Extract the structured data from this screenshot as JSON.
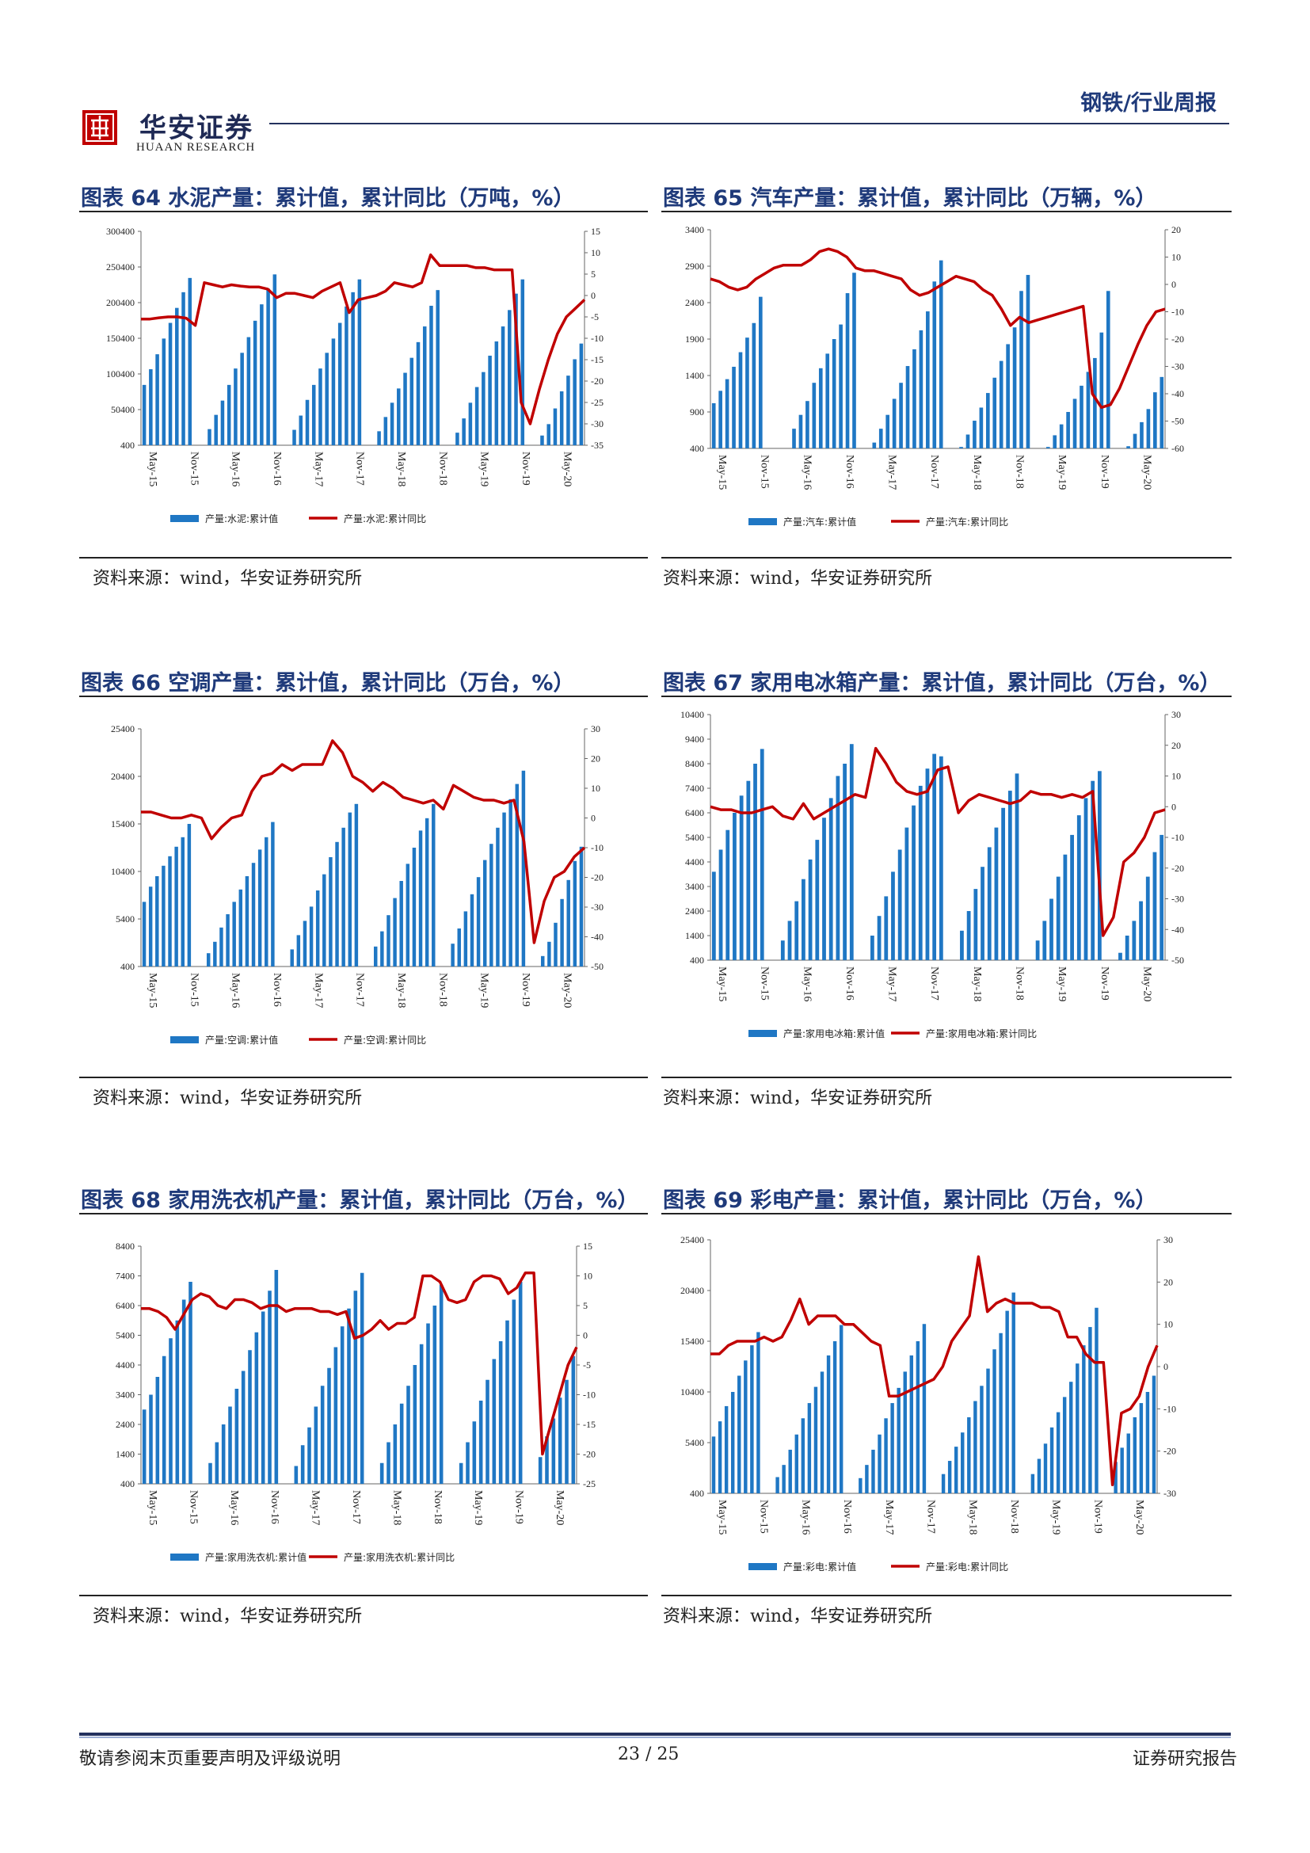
{
  "header": {
    "logo_cn": "华安证券",
    "logo_en": "HUAAN RESEARCH",
    "report_type": "钢铁/行业周报"
  },
  "footer": {
    "disclaimer": "敬请参阅末页重要声明及评级说明",
    "page": "23 / 25",
    "label": "证券研究报告"
  },
  "colors": {
    "bar": "#1f77c4",
    "line": "#c00000",
    "title": "#1f3a7a"
  },
  "panels": [
    {
      "title": "图表 64 水泥产量：累计值，累计同比（万吨，%）",
      "source": "资料来源：wind，华安证券研究所"
    },
    {
      "title": "图表 65 汽车产量：累计值，累计同比（万辆，%）",
      "source": "资料来源：wind，华安证券研究所"
    },
    {
      "title": "图表 66 空调产量：累计值，累计同比（万台，%）",
      "source": "资料来源：wind，华安证券研究所"
    },
    {
      "title": "图表 67 家用电冰箱产量：累计值，累计同比（万台，%）",
      "source": "资料来源：wind，华安证券研究所"
    },
    {
      "title": "图表 68 家用洗衣机产量：累计值，累计同比（万台，%）",
      "source": "资料来源：wind，华安证券研究所"
    },
    {
      "title": "图表 69 彩电产量：累计值，累计同比（万台，%）",
      "source": "资料来源：wind，华安证券研究所"
    }
  ],
  "chart_data": [
    {
      "type": "bar+line",
      "x_tick_labels": [
        "May-15",
        "Nov-15",
        "May-16",
        "Nov-16",
        "May-17",
        "Nov-17",
        "May-18",
        "Nov-18",
        "May-19",
        "Nov-19",
        "May-20"
      ],
      "left_axis": {
        "ylim": [
          400,
          300400
        ],
        "ticks": [
          400,
          50400,
          100400,
          150400,
          200400,
          250400,
          300400
        ]
      },
      "right_axis": {
        "ylim": [
          -35,
          15
        ],
        "ticks": [
          -35,
          -30,
          -25,
          -20,
          -15,
          -10,
          -5,
          0,
          5,
          10,
          15
        ]
      },
      "series": [
        {
          "name": "产量:水泥:累计值",
          "kind": "bar",
          "values": [
            85000,
            107000,
            128000,
            150000,
            172000,
            193000,
            215000,
            235000,
            null,
            null,
            23000,
            43000,
            63000,
            85000,
            108000,
            130000,
            152000,
            175000,
            198000,
            220000,
            240000,
            null,
            null,
            22000,
            42000,
            64000,
            85000,
            108000,
            130000,
            150000,
            172000,
            195000,
            215000,
            233000,
            null,
            null,
            20000,
            40000,
            60000,
            80000,
            102000,
            123000,
            145000,
            167000,
            196000,
            218000,
            null,
            null,
            18000,
            38000,
            60000,
            82000,
            103000,
            126000,
            146000,
            167000,
            190000,
            213000,
            233000,
            null,
            null,
            14000,
            30000,
            52000,
            76000,
            98000,
            121000,
            143000
          ]
        },
        {
          "name": "产量:水泥:累计同比",
          "kind": "line",
          "values": [
            -5.5,
            -5.5,
            -5.2,
            -5.0,
            -5.0,
            -5.3,
            -7.0,
            3.0,
            2.5,
            2.0,
            2.5,
            2.2,
            2.0,
            2.0,
            1.5,
            -0.5,
            0.5,
            0.5,
            0.0,
            -0.5,
            1.0,
            2.0,
            3.0,
            -4.0,
            -1.0,
            -0.5,
            0.0,
            1.0,
            3.0,
            2.5,
            2.0,
            3.0,
            9.5,
            7.0,
            7.0,
            7.0,
            7.0,
            6.5,
            6.5,
            6.0,
            6.0,
            6.0,
            -25.0,
            -30.0,
            -22.0,
            -15.0,
            -9.0,
            -5.0,
            -3.0,
            -1.0
          ]
        }
      ]
    },
    {
      "type": "bar+line",
      "x_tick_labels": [
        "May-15",
        "Nov-15",
        "May-16",
        "Nov-16",
        "May-17",
        "Nov-17",
        "May-18",
        "Nov-18",
        "May-19",
        "Nov-19",
        "May-20"
      ],
      "left_axis": {
        "ylim": [
          400,
          3400
        ],
        "ticks": [
          400,
          900,
          1400,
          1900,
          2400,
          2900,
          3400
        ]
      },
      "right_axis": {
        "ylim": [
          -60,
          20
        ],
        "ticks": [
          -60,
          -50,
          -40,
          -30,
          -20,
          -10,
          0,
          10,
          20
        ]
      },
      "series": [
        {
          "name": "产量:汽车:累计值",
          "kind": "bar",
          "values": [
            1020,
            1190,
            1350,
            1520,
            1720,
            1920,
            2120,
            2480,
            null,
            null,
            null,
            null,
            670,
            860,
            1050,
            1300,
            1500,
            1700,
            1900,
            2100,
            2530,
            2810,
            null,
            null,
            480,
            670,
            860,
            1080,
            1300,
            1530,
            1760,
            2020,
            2280,
            2690,
            2980,
            null,
            null,
            420,
            590,
            780,
            960,
            1160,
            1370,
            1600,
            1830,
            2060,
            2560,
            2780,
            null,
            null,
            420,
            580,
            730,
            900,
            1080,
            1260,
            1450,
            1640,
            1990,
            2560,
            null,
            null,
            430,
            600,
            760,
            940,
            1170,
            1380
          ]
        },
        {
          "name": "产量:汽车:累计同比",
          "kind": "line",
          "values": [
            2,
            1,
            -1,
            -2,
            -1,
            2,
            4,
            6,
            7,
            7,
            7,
            9,
            12,
            13,
            12,
            10,
            6,
            5,
            5,
            4,
            3,
            2,
            -2,
            -4,
            -3,
            -1,
            1,
            3,
            2,
            1,
            -2,
            -4,
            -9,
            -15,
            -12,
            -14,
            -13,
            -12,
            -11,
            -10,
            -9,
            -8,
            -40,
            -45,
            -44,
            -38,
            -30,
            -22,
            -15,
            -10,
            -9
          ]
        }
      ]
    },
    {
      "type": "bar+line",
      "x_tick_labels": [
        "May-15",
        "Nov-15",
        "May-16",
        "Nov-16",
        "May-17",
        "Nov-17",
        "May-18",
        "Nov-18",
        "May-19",
        "Nov-19",
        "May-20"
      ],
      "left_axis": {
        "ylim": [
          400,
          25400
        ],
        "ticks": [
          400,
          5400,
          10400,
          15400,
          20400,
          25400
        ]
      },
      "right_axis": {
        "ylim": [
          -50,
          30
        ],
        "ticks": [
          -50,
          -40,
          -30,
          -20,
          -10,
          0,
          10,
          20,
          30
        ]
      },
      "series": [
        {
          "name": "产量:空调:累计值",
          "kind": "bar",
          "values": [
            7200,
            8800,
            9900,
            11000,
            12000,
            13000,
            14000,
            15400,
            null,
            null,
            1800,
            3000,
            4500,
            5900,
            7200,
            8500,
            9900,
            11300,
            12700,
            14000,
            15600,
            null,
            null,
            2200,
            3700,
            5200,
            6700,
            8400,
            10100,
            11900,
            13500,
            15000,
            16600,
            17500,
            null,
            null,
            2500,
            4100,
            5800,
            7600,
            9400,
            11200,
            12900,
            14700,
            16000,
            17500,
            null,
            null,
            2800,
            4400,
            6200,
            8000,
            9800,
            11600,
            13300,
            15000,
            16600,
            18000,
            19600,
            21000,
            null,
            null,
            1500,
            3000,
            5000,
            7500,
            9500,
            11500,
            13000
          ]
        },
        {
          "name": "产量:空调:累计同比",
          "kind": "line",
          "values": [
            2,
            2,
            1,
            0,
            0,
            1,
            0,
            -7,
            -3,
            0,
            1,
            9,
            14,
            15,
            18,
            16,
            18,
            18,
            18,
            26,
            22,
            14,
            12,
            9,
            12,
            10,
            7,
            6,
            5,
            6,
            3,
            11,
            9,
            7,
            6,
            6,
            5,
            6,
            -8,
            -42,
            -28,
            -20,
            -18,
            -13,
            -10
          ]
        }
      ]
    },
    {
      "type": "bar+line",
      "x_tick_labels": [
        "May-15",
        "Nov-15",
        "May-16",
        "Nov-16",
        "May-17",
        "Nov-17",
        "May-18",
        "Nov-18",
        "May-19",
        "Nov-19",
        "May-20"
      ],
      "left_axis": {
        "ylim": [
          400,
          10400
        ],
        "ticks": [
          400,
          1400,
          2400,
          3400,
          4400,
          5400,
          6400,
          7400,
          8400,
          9400,
          10400
        ]
      },
      "right_axis": {
        "ylim": [
          -50,
          30
        ],
        "ticks": [
          -50,
          -40,
          -30,
          -20,
          -10,
          0,
          10,
          20,
          30
        ]
      },
      "series": [
        {
          "name": "产量:家用电冰箱:累计值",
          "kind": "bar",
          "values": [
            4000,
            4900,
            5700,
            6400,
            7100,
            7700,
            8400,
            9000,
            null,
            null,
            1200,
            2000,
            2800,
            3700,
            4500,
            5300,
            6200,
            7000,
            7900,
            8400,
            9200,
            null,
            null,
            1400,
            2200,
            3000,
            4000,
            4900,
            5800,
            6700,
            7500,
            8200,
            8800,
            8700,
            null,
            null,
            1600,
            2400,
            3300,
            4200,
            5000,
            5800,
            6600,
            7300,
            8000,
            null,
            null,
            1200,
            2000,
            2900,
            3800,
            4700,
            5500,
            6300,
            7000,
            7700,
            8100,
            null,
            null,
            700,
            1400,
            2000,
            2800,
            3800,
            4800,
            5500
          ]
        },
        {
          "name": "产量:家用电冰箱:累计同比",
          "kind": "line",
          "values": [
            0,
            -1,
            -1,
            -2,
            -2,
            -1,
            0,
            -3,
            -4,
            1,
            -4,
            -2,
            0,
            2,
            4,
            3,
            19,
            14,
            8,
            5,
            4,
            5,
            12,
            13,
            -2,
            2,
            4,
            3,
            2,
            1,
            2,
            5,
            4,
            4,
            3,
            4,
            3,
            5,
            -42,
            -36,
            -18,
            -15,
            -10,
            -2,
            -1
          ]
        }
      ]
    },
    {
      "type": "bar+line",
      "x_tick_labels": [
        "May-15",
        "Nov-15",
        "May-16",
        "Nov-16",
        "May-17",
        "Nov-17",
        "May-18",
        "Nov-18",
        "May-19",
        "Nov-19",
        "May-20"
      ],
      "left_axis": {
        "ylim": [
          400,
          8400
        ],
        "ticks": [
          400,
          1400,
          2400,
          3400,
          4400,
          5400,
          6400,
          7400,
          8400
        ]
      },
      "right_axis": {
        "ylim": [
          -25,
          15
        ],
        "ticks": [
          -25,
          -20,
          -15,
          -10,
          -5,
          0,
          5,
          10,
          15
        ]
      },
      "series": [
        {
          "name": "产量:家用洗衣机:累计值",
          "kind": "bar",
          "values": [
            2900,
            3400,
            4000,
            4700,
            5300,
            5900,
            6600,
            7200,
            null,
            null,
            1100,
            1800,
            2400,
            3000,
            3600,
            4200,
            4900,
            5500,
            6200,
            6900,
            7600,
            null,
            null,
            1000,
            1700,
            2300,
            3000,
            3700,
            4300,
            5000,
            5700,
            6300,
            6900,
            7500,
            null,
            null,
            1100,
            1800,
            2400,
            3100,
            3700,
            4400,
            5100,
            5800,
            6400,
            7100,
            null,
            null,
            1100,
            1800,
            2500,
            3200,
            3900,
            4600,
            5200,
            5900,
            6600,
            7200,
            null,
            null,
            1300,
            2000,
            2600,
            3300,
            3900,
            4700
          ]
        },
        {
          "name": "产量:家用洗衣机:累计同比",
          "kind": "line",
          "values": [
            4.5,
            4.5,
            4,
            3,
            1,
            3.5,
            6,
            7,
            6.5,
            5,
            4.5,
            6,
            6,
            5.5,
            4.5,
            5,
            5,
            4,
            4.5,
            4.5,
            4.5,
            4,
            4,
            3.5,
            4,
            -0.5,
            0,
            1,
            2.5,
            1,
            2,
            2,
            3,
            10,
            10,
            9,
            6,
            5.5,
            6,
            9,
            10,
            10,
            9.5,
            7,
            8,
            10.5,
            10.5,
            -20,
            -15,
            -10,
            -5,
            -2
          ]
        }
      ]
    },
    {
      "type": "bar+line",
      "x_tick_labels": [
        "May-15",
        "Nov-15",
        "May-16",
        "Nov-16",
        "May-17",
        "Nov-17",
        "May-18",
        "Nov-18",
        "May-19",
        "Nov-19",
        "May-20"
      ],
      "left_axis": {
        "ylim": [
          400,
          25400
        ],
        "ticks": [
          400,
          5400,
          10400,
          15400,
          20400,
          25400
        ]
      },
      "right_axis": {
        "ylim": [
          -30,
          30
        ],
        "ticks": [
          -30,
          -20,
          -10,
          0,
          10,
          20,
          30
        ]
      },
      "series": [
        {
          "name": "产量:彩电:累计值",
          "kind": "bar",
          "values": [
            6000,
            7500,
            9000,
            10400,
            12000,
            13500,
            15000,
            16300,
            null,
            null,
            2000,
            3200,
            4700,
            6200,
            7800,
            9300,
            10900,
            12400,
            14000,
            15400,
            17000,
            null,
            null,
            1900,
            3200,
            4700,
            6200,
            7800,
            9300,
            10800,
            12400,
            14000,
            15400,
            17100,
            null,
            null,
            2300,
            3600,
            5000,
            6400,
            7900,
            9500,
            11000,
            12700,
            14600,
            16200,
            18400,
            20200,
            null,
            null,
            2300,
            3800,
            5300,
            6900,
            8400,
            9900,
            11400,
            13200,
            15000,
            16800,
            18700,
            null,
            null,
            3500,
            4900,
            6300,
            7900,
            9300,
            10400,
            12000
          ]
        },
        {
          "name": "产量:彩电:累计同比",
          "kind": "line",
          "values": [
            3,
            3,
            5,
            6,
            6,
            6,
            7,
            6,
            7,
            11,
            16,
            10,
            12,
            12,
            12,
            10,
            10,
            8,
            6,
            5,
            -7,
            -7,
            -6,
            -5,
            -4,
            -3,
            0,
            6,
            9,
            12,
            26,
            13,
            15,
            16,
            15,
            15,
            15,
            14,
            14,
            13,
            7,
            7,
            3,
            1,
            1,
            -28,
            -11,
            -10,
            -7,
            0,
            5
          ]
        }
      ]
    }
  ]
}
